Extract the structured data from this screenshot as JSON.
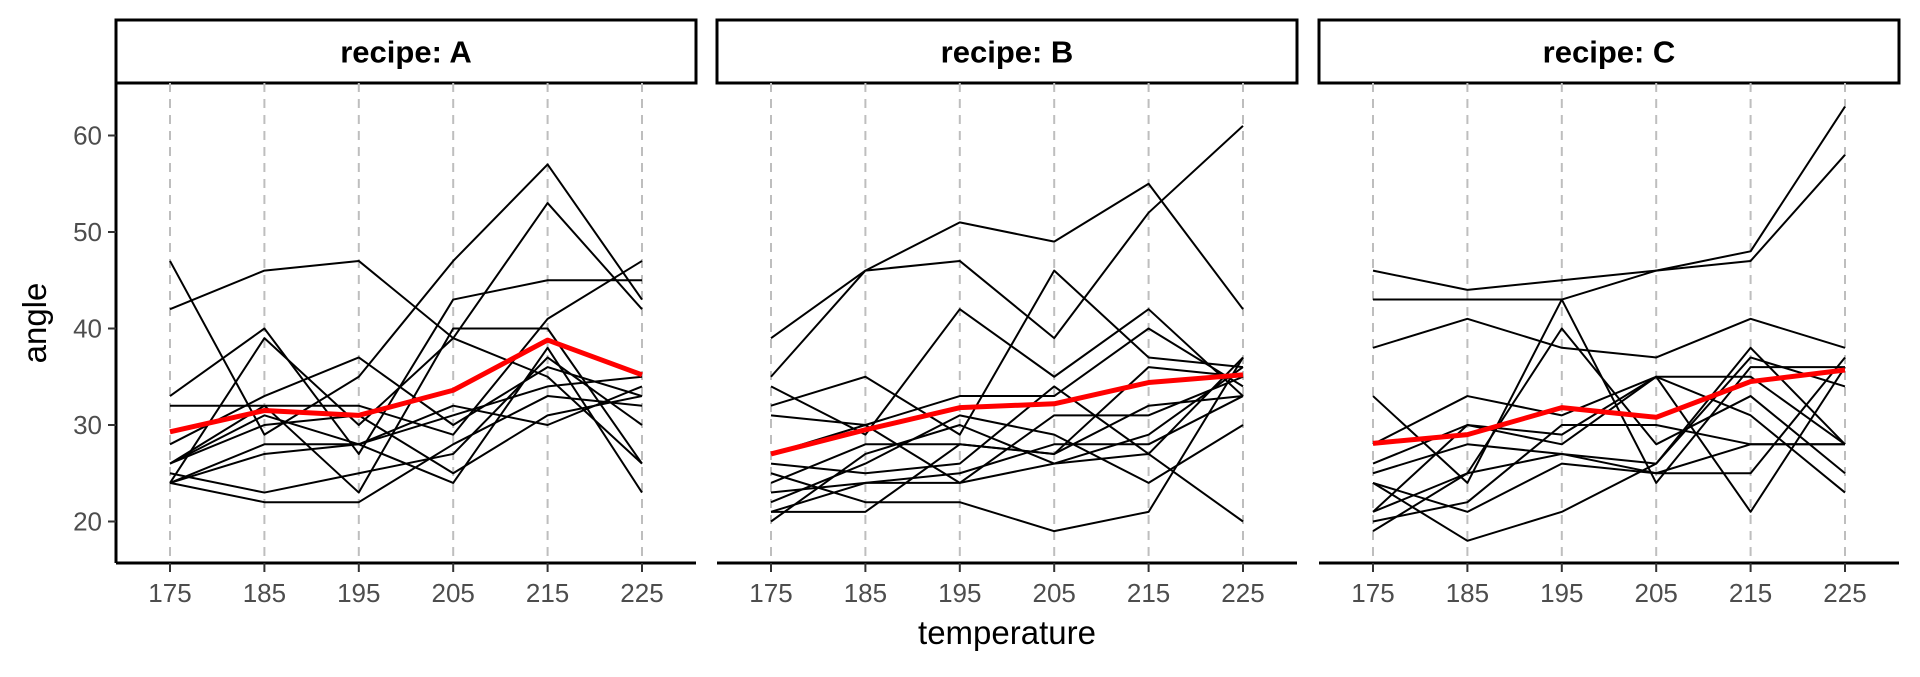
{
  "chart_data": {
    "type": "line",
    "xlabel": "temperature",
    "ylabel": "angle",
    "x": [
      175,
      185,
      195,
      205,
      215,
      225
    ],
    "x_ticks": [
      "175",
      "185",
      "195",
      "205",
      "215",
      "225"
    ],
    "y_ticks": [
      "20",
      "30",
      "40",
      "50",
      "60"
    ],
    "xlim": [
      170,
      230
    ],
    "ylim": [
      16,
      66
    ],
    "grid": "vertical dashed lines at x ticks",
    "colors": {
      "individual": "#000000",
      "mean": "#ff0000",
      "grid": "#bebebe"
    },
    "panels": [
      {
        "strip": "recipe: A",
        "series": [
          {
            "values": [
              42,
              46,
              47,
              39,
              35,
              26
            ]
          },
          {
            "values": [
              47,
              29,
              35,
              47,
              57,
              43
            ]
          },
          {
            "values": [
              33,
              40,
              27,
              43,
              45,
              45
            ]
          },
          {
            "values": [
              32,
              32,
              23,
              40,
              40,
              26
            ]
          },
          {
            "values": [
              24,
              39,
              30,
              39,
              53,
              42
            ]
          },
          {
            "values": [
              26,
              31,
              28,
              24,
              38,
              23
            ]
          },
          {
            "values": [
              28,
              33,
              37,
              30,
              36,
              33
            ]
          },
          {
            "values": [
              26,
              32,
              32,
              29,
              41,
              47
            ]
          },
          {
            "values": [
              24,
              28,
              28,
              31,
              34,
              35
            ]
          },
          {
            "values": [
              24,
              27,
              28,
              32,
              30,
              34
            ]
          },
          {
            "values": [
              25,
              23,
              25,
              27,
              37,
              30
            ]
          },
          {
            "values": [
              24,
              22,
              22,
              28,
              33,
              32
            ]
          },
          {
            "values": [
              26,
              30,
              31,
              25,
              31,
              33
            ]
          }
        ],
        "mean": [
          29.3,
          31.5,
          31,
          33.6,
          38.8,
          35.2
        ]
      },
      {
        "strip": "recipe: B",
        "series": [
          {
            "values": [
              39,
              46,
              51,
              49,
              55,
              42
            ]
          },
          {
            "values": [
              35,
              46,
              47,
              39,
              52,
              61
            ]
          },
          {
            "values": [
              34,
              29,
              42,
              35,
              42,
              33
            ]
          },
          {
            "values": [
              32,
              35,
              29,
              46,
              37,
              36
            ]
          },
          {
            "values": [
              31,
              30,
              33,
              33,
              40,
              34
            ]
          },
          {
            "values": [
              27,
              30,
              24,
              31,
              31,
              35
            ]
          },
          {
            "values": [
              26,
              25,
              26,
              34,
              27,
              37
            ]
          },
          {
            "values": [
              25,
              22,
              22,
              19,
              21,
              37
            ]
          },
          {
            "values": [
              24,
              28,
              28,
              27,
              32,
              33
            ]
          },
          {
            "values": [
              23,
              24,
              25,
              28,
              28,
              33
            ]
          },
          {
            "values": [
              22,
              26,
              31,
              29,
              24,
              30
            ]
          },
          {
            "values": [
              21,
              24,
              24,
              26,
              27,
              20
            ]
          },
          {
            "values": [
              21,
              21,
              28,
              27,
              36,
              35
            ]
          },
          {
            "values": [
              20,
              27,
              30,
              26,
              29,
              36
            ]
          }
        ],
        "mean": [
          27,
          29.5,
          31.8,
          32.2,
          34.4,
          35.2
        ]
      },
      {
        "strip": "recipe: C",
        "series": [
          {
            "values": [
              46,
              44,
              45,
              46,
              48,
              63
            ]
          },
          {
            "values": [
              43,
              43,
              43,
              46,
              47,
              58
            ]
          },
          {
            "values": [
              38,
              41,
              38,
              37,
              41,
              38
            ]
          },
          {
            "values": [
              33,
              24,
              43,
              24,
              36,
              36
            ]
          },
          {
            "values": [
              28,
              33,
              31,
              35,
              35,
              28
            ]
          },
          {
            "values": [
              26,
              30,
              29,
              35,
              31,
              23
            ]
          },
          {
            "values": [
              25,
              28,
              27,
              26,
              37,
              34
            ]
          },
          {
            "values": [
              24,
              21,
              26,
              25,
              25,
              37
            ]
          },
          {
            "values": [
              24,
              18,
              21,
              26,
              38,
              28
            ]
          },
          {
            "values": [
              21,
              25,
              40,
              28,
              33,
              25
            ]
          },
          {
            "values": [
              20,
              22,
              30,
              30,
              28,
              28
            ]
          },
          {
            "values": [
              19,
              25,
              27,
              25,
              28,
              28
            ]
          },
          {
            "values": [
              21,
              30,
              28,
              35,
              21,
              36
            ]
          }
        ],
        "mean": [
          28.1,
          29,
          31.8,
          30.8,
          34.5,
          35.7
        ]
      }
    ]
  }
}
